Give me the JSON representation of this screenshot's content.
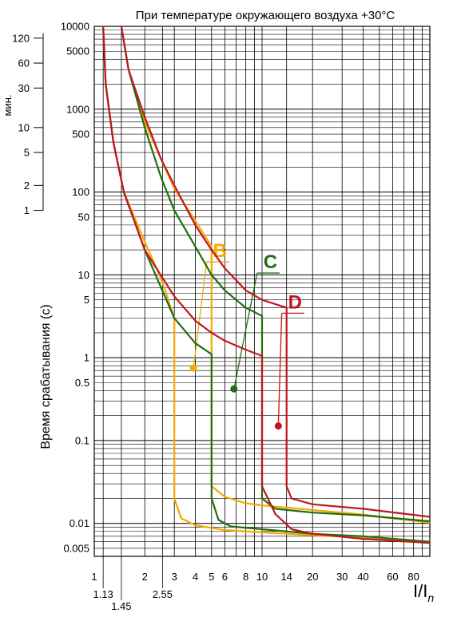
{
  "chart_data": {
    "type": "line",
    "title": "При температуре окружающего воздуха +30°C",
    "xlabel": "I/I",
    "xlabel_sub": "n",
    "ylabel": "Время срабатывания (с)",
    "minutes_label": "мин.",
    "x_scale": "log",
    "y_scale": "log",
    "xlim": [
      1,
      100
    ],
    "ylim": [
      0.004,
      10000
    ],
    "grid": true,
    "x_ticks": [
      {
        "value": 1,
        "label": "1",
        "row": 0
      },
      {
        "value": 1.13,
        "label": "1.13",
        "row": 1
      },
      {
        "value": 1.45,
        "label": "1.45",
        "row": 2
      },
      {
        "value": 2,
        "label": "2",
        "row": 0
      },
      {
        "value": 2.55,
        "label": "2.55",
        "row": 1
      },
      {
        "value": 3,
        "label": "3",
        "row": 0
      },
      {
        "value": 4,
        "label": "4",
        "row": 0
      },
      {
        "value": 5,
        "label": "5",
        "row": 0
      },
      {
        "value": 6,
        "label": "6",
        "row": 0
      },
      {
        "value": 8,
        "label": "8",
        "row": 0
      },
      {
        "value": 10,
        "label": "10",
        "row": 0
      },
      {
        "value": 14,
        "label": "14",
        "row": 0
      },
      {
        "value": 20,
        "label": "20",
        "row": 0
      },
      {
        "value": 30,
        "label": "30",
        "row": 0
      },
      {
        "value": 40,
        "label": "40",
        "row": 0
      },
      {
        "value": 60,
        "label": "60",
        "row": 0
      },
      {
        "value": 80,
        "label": "80",
        "row": 0
      }
    ],
    "y_ticks": [
      {
        "value": 10000,
        "label": "10000"
      },
      {
        "value": 5000,
        "label": "5000"
      },
      {
        "value": 1000,
        "label": "1000"
      },
      {
        "value": 500,
        "label": "500"
      },
      {
        "value": 100,
        "label": "100"
      },
      {
        "value": 50,
        "label": "50"
      },
      {
        "value": 10,
        "label": "10"
      },
      {
        "value": 5,
        "label": "5"
      },
      {
        "value": 1,
        "label": "1"
      },
      {
        "value": 0.5,
        "label": "0.5"
      },
      {
        "value": 0.1,
        "label": "0.1"
      },
      {
        "value": 0.01,
        "label": "0.01"
      },
      {
        "value": 0.005,
        "label": "0.005"
      }
    ],
    "minute_ticks": [
      {
        "value": 7200,
        "label": "120"
      },
      {
        "value": 3600,
        "label": "60"
      },
      {
        "value": 1800,
        "label": "30"
      },
      {
        "value": 600,
        "label": "10"
      },
      {
        "value": 300,
        "label": "5"
      },
      {
        "value": 120,
        "label": "2"
      },
      {
        "value": 60,
        "label": "1"
      }
    ],
    "series": [
      {
        "name": "B",
        "color": "#f5a800",
        "label_at": [
          5.1,
          15
        ],
        "marker": [
          3.9,
          0.75
        ],
        "upper": [
          [
            1.45,
            10000
          ],
          [
            1.6,
            3000
          ],
          [
            2,
            700
          ],
          [
            2.5,
            250
          ],
          [
            3,
            110
          ],
          [
            4,
            45
          ],
          [
            5,
            22
          ],
          [
            5,
            0.028
          ],
          [
            6,
            0.021
          ],
          [
            8,
            0.0175
          ],
          [
            10,
            0.0165
          ],
          [
            20,
            0.0145
          ],
          [
            40,
            0.0128
          ],
          [
            60,
            0.0115
          ],
          [
            100,
            0.0102
          ]
        ],
        "lower": [
          [
            1.13,
            10000
          ],
          [
            1.17,
            2000
          ],
          [
            1.3,
            400
          ],
          [
            1.5,
            100
          ],
          [
            2,
            25
          ],
          [
            2.5,
            9
          ],
          [
            3,
            3
          ],
          [
            3,
            0.02
          ],
          [
            3.3,
            0.0115
          ],
          [
            4,
            0.0095
          ],
          [
            6,
            0.0083
          ],
          [
            10,
            0.0078
          ],
          [
            20,
            0.0072
          ],
          [
            40,
            0.0068
          ],
          [
            100,
            0.0058
          ]
        ]
      },
      {
        "name": "C",
        "color": "#1f6e10",
        "label_at": [
          10.2,
          11
        ],
        "marker": [
          6.8,
          0.42
        ],
        "upper": [
          [
            1.45,
            10000
          ],
          [
            1.6,
            3000
          ],
          [
            2,
            600
          ],
          [
            2.5,
            150
          ],
          [
            3,
            60
          ],
          [
            4,
            22
          ],
          [
            5,
            10
          ],
          [
            6,
            6.5
          ],
          [
            8,
            4
          ],
          [
            10,
            3.2
          ],
          [
            10,
            0.02
          ],
          [
            12,
            0.015
          ],
          [
            20,
            0.0135
          ],
          [
            40,
            0.0125
          ],
          [
            100,
            0.0106
          ]
        ],
        "lower": [
          [
            1.13,
            10000
          ],
          [
            1.17,
            2000
          ],
          [
            1.3,
            400
          ],
          [
            1.5,
            100
          ],
          [
            2,
            20
          ],
          [
            2.5,
            7
          ],
          [
            3,
            3
          ],
          [
            4,
            1.5
          ],
          [
            5,
            1.1
          ],
          [
            5,
            0.02
          ],
          [
            5.5,
            0.011
          ],
          [
            6.5,
            0.0092
          ],
          [
            10,
            0.0085
          ],
          [
            20,
            0.0075
          ],
          [
            40,
            0.007
          ],
          [
            100,
            0.006
          ]
        ]
      },
      {
        "name": "D",
        "color": "#c0171c",
        "label_at": [
          14.3,
          3.6
        ],
        "marker": [
          12.5,
          0.15
        ],
        "upper": [
          [
            1.45,
            10000
          ],
          [
            1.6,
            3000
          ],
          [
            2,
            800
          ],
          [
            2.5,
            250
          ],
          [
            3,
            120
          ],
          [
            4,
            40
          ],
          [
            5,
            20
          ],
          [
            6,
            12
          ],
          [
            8,
            6.5
          ],
          [
            10,
            5
          ],
          [
            14,
            4
          ],
          [
            14,
            0.028
          ],
          [
            15,
            0.02
          ],
          [
            20,
            0.017
          ],
          [
            40,
            0.015
          ],
          [
            100,
            0.012
          ]
        ],
        "lower": [
          [
            1.13,
            10000
          ],
          [
            1.17,
            2000
          ],
          [
            1.3,
            400
          ],
          [
            1.5,
            100
          ],
          [
            2,
            20
          ],
          [
            3,
            5.5
          ],
          [
            4,
            2.8
          ],
          [
            5,
            2
          ],
          [
            6,
            1.6
          ],
          [
            8,
            1.25
          ],
          [
            10,
            1.05
          ],
          [
            10,
            0.028
          ],
          [
            12,
            0.013
          ],
          [
            15,
            0.0085
          ],
          [
            20,
            0.0075
          ],
          [
            40,
            0.0065
          ],
          [
            100,
            0.0058
          ]
        ]
      }
    ]
  }
}
